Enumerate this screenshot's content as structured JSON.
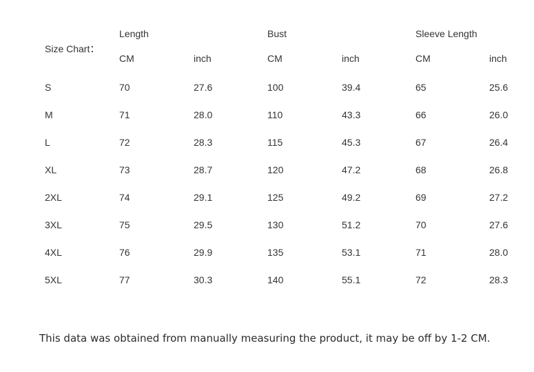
{
  "title": "Size Chart：",
  "table": {
    "groups": [
      {
        "label": "Length"
      },
      {
        "label": "Bust"
      },
      {
        "label": "Sleeve Length"
      }
    ],
    "unit_headers": [
      "CM",
      "inch",
      "CM",
      "inch",
      "CM",
      "inch"
    ],
    "rows": [
      {
        "size": "S",
        "values": [
          "70",
          "27.6",
          "100",
          "39.4",
          "65",
          "25.6"
        ]
      },
      {
        "size": "M",
        "values": [
          "71",
          "28.0",
          "110",
          "43.3",
          "66",
          "26.0"
        ]
      },
      {
        "size": "L",
        "values": [
          "72",
          "28.3",
          "115",
          "45.3",
          "67",
          "26.4"
        ]
      },
      {
        "size": "XL",
        "values": [
          "73",
          "28.7",
          "120",
          "47.2",
          "68",
          "26.8"
        ]
      },
      {
        "size": "2XL",
        "values": [
          "74",
          "29.1",
          "125",
          "49.2",
          "69",
          "27.2"
        ]
      },
      {
        "size": "3XL",
        "values": [
          "75",
          "29.5",
          "130",
          "51.2",
          "70",
          "27.6"
        ]
      },
      {
        "size": "4XL",
        "values": [
          "76",
          "29.9",
          "135",
          "53.1",
          "71",
          "28.0"
        ]
      },
      {
        "size": "5XL",
        "values": [
          "77",
          "30.3",
          "140",
          "55.1",
          "72",
          "28.3"
        ]
      }
    ]
  },
  "note": "This data was obtained from manually measuring the product, it may be off by 1-2 CM.",
  "colors": {
    "text": "#333333",
    "background": "#ffffff"
  }
}
